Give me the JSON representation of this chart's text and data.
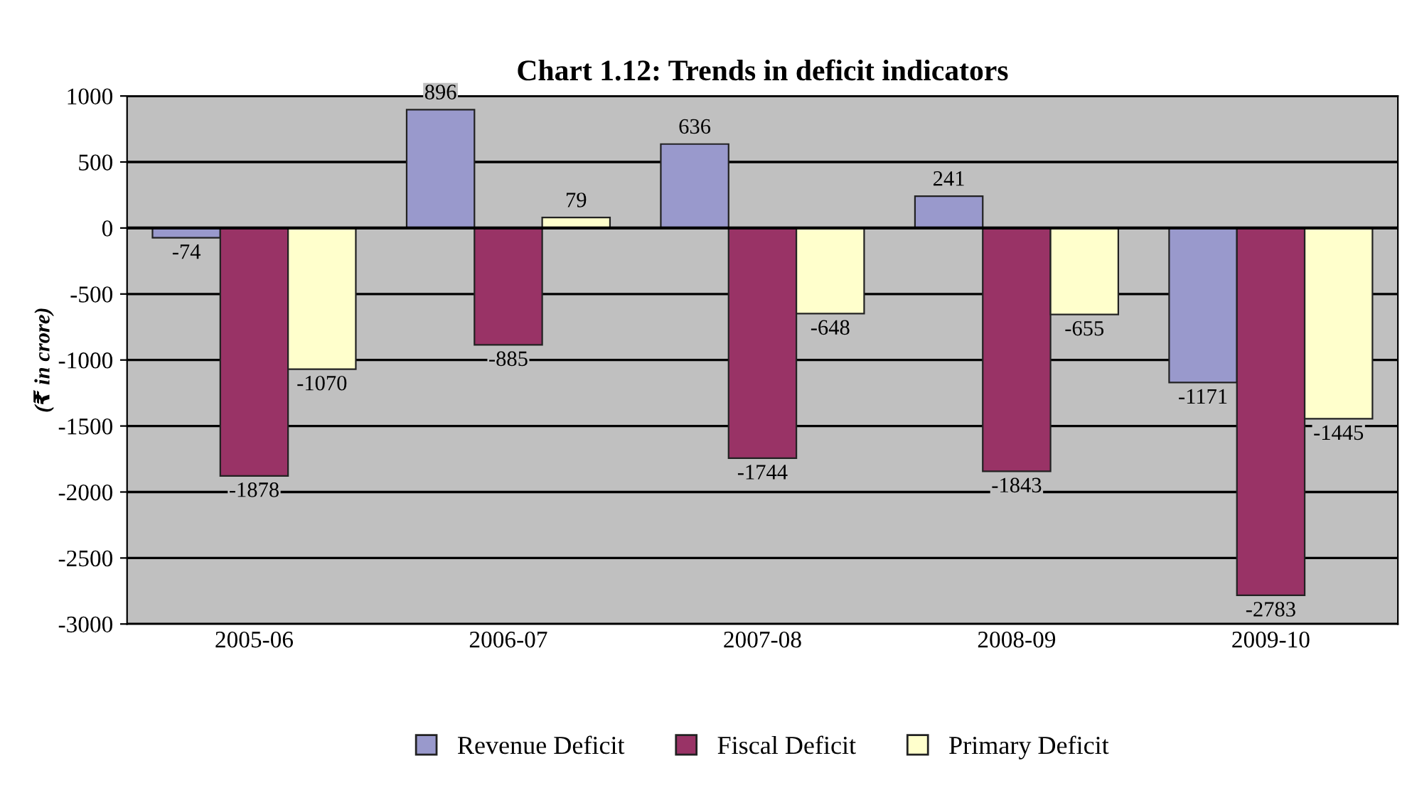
{
  "chart_data": {
    "type": "bar",
    "title": "Chart 1.12: Trends in deficit indicators",
    "ylabel": "(₹ in crore)",
    "categories": [
      "2005-06",
      "2006-07",
      "2007-08",
      "2008-09",
      "2009-10"
    ],
    "series": [
      {
        "name": "Revenue Deficit",
        "color": "#9999cc",
        "values": [
          -74,
          896,
          636,
          241,
          -1171
        ]
      },
      {
        "name": "Fiscal Deficit",
        "color": "#993366",
        "values": [
          -1878,
          -885,
          -1744,
          -1843,
          -2783
        ]
      },
      {
        "name": "Primary Deficit",
        "color": "#ffffcc",
        "values": [
          -1070,
          79,
          -648,
          -655,
          -1445
        ]
      }
    ],
    "ylim": [
      -3000,
      1000
    ],
    "yticks": [
      -3000,
      -2500,
      -2000,
      -1500,
      -1000,
      -500,
      0,
      500,
      1000
    ],
    "grid": "y",
    "legend": "bottom",
    "data_labels": true
  }
}
